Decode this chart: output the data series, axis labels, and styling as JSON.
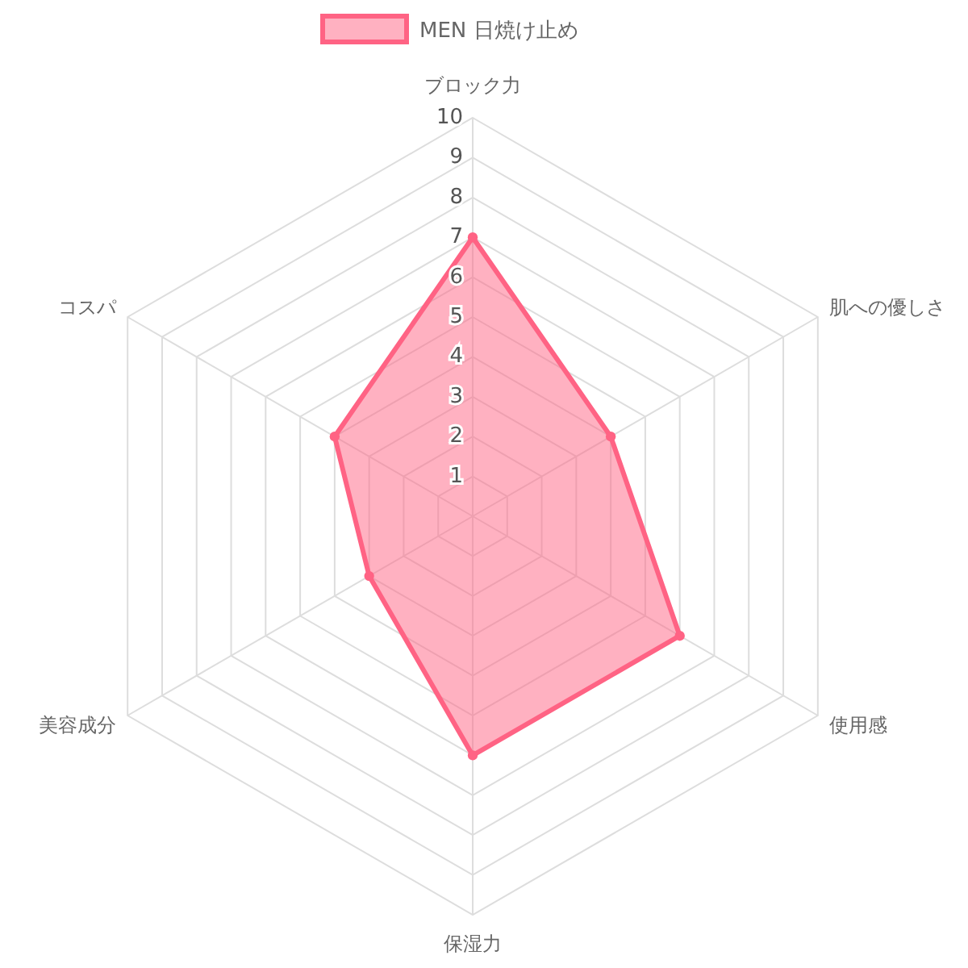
{
  "chart_data": {
    "type": "radar",
    "categories": [
      "ブロック力",
      "肌への優しさ",
      "使用感",
      "保湿力",
      "美容成分",
      "コスパ"
    ],
    "series": [
      {
        "name": "MEN 日焼け止め",
        "color": "#ff6384",
        "values": [
          7,
          4,
          6,
          6,
          3,
          4
        ]
      }
    ],
    "ylim": [
      0,
      10
    ],
    "yticks": [
      1,
      2,
      3,
      4,
      5,
      6,
      7,
      8,
      9,
      10
    ],
    "grid": true,
    "legend": "top",
    "marker": "circle"
  }
}
